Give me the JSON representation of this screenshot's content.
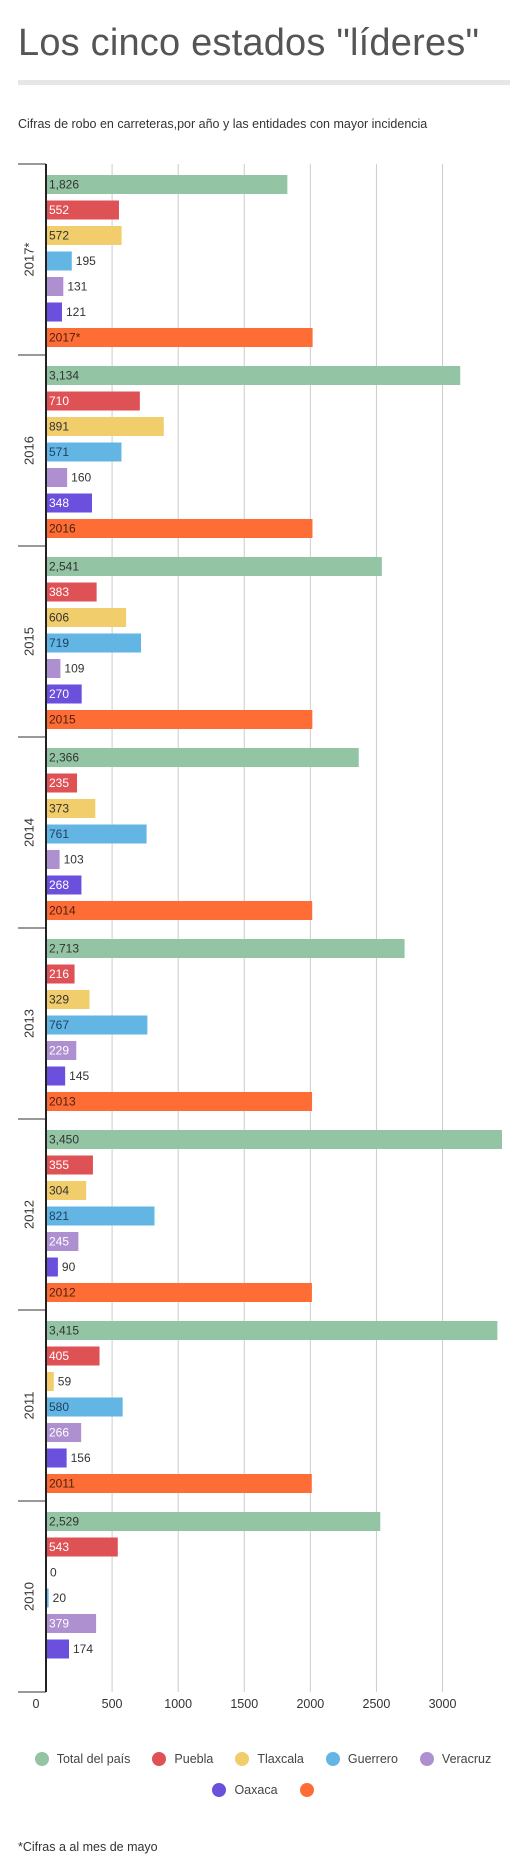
{
  "title": "Los cinco estados \"líderes\"",
  "subtitle": "Cifras de robo en carreteras,por año y las entidades con mayor incidencia",
  "footnote": "*Cifras a al mes de mayo",
  "chart_data": {
    "type": "bar",
    "orientation": "horizontal",
    "categories": [
      "2017*",
      "2016",
      "2015",
      "2014",
      "2013",
      "2012",
      "2011",
      "2010"
    ],
    "series": [
      {
        "name": "Total del país",
        "color": "#93c4a4",
        "values": [
          1826,
          3134,
          2541,
          2366,
          2713,
          3450,
          3415,
          2529
        ]
      },
      {
        "name": "Puebla",
        "color": "#de5155",
        "values": [
          552,
          710,
          383,
          235,
          216,
          355,
          405,
          543
        ]
      },
      {
        "name": "Tlaxcala",
        "color": "#f1cd6b",
        "values": [
          572,
          891,
          606,
          373,
          329,
          304,
          59,
          0
        ]
      },
      {
        "name": "Guerrero",
        "color": "#63b6e4",
        "values": [
          195,
          571,
          719,
          761,
          767,
          821,
          580,
          20
        ]
      },
      {
        "name": "Veracruz",
        "color": "#ae8fd0",
        "values": [
          131,
          160,
          109,
          103,
          229,
          245,
          266,
          379
        ]
      },
      {
        "name": "Oaxaca",
        "color": "#6b4fdd",
        "values": [
          121,
          348,
          270,
          268,
          145,
          90,
          156,
          174
        ]
      },
      {
        "name": "",
        "color": "#ff6d37",
        "values": [
          2017,
          2016,
          2015,
          2014,
          2013,
          2012,
          2011,
          null
        ],
        "labels": [
          "2017*",
          "2016",
          "2015",
          "2014",
          "2013",
          "2012",
          "2011",
          ""
        ]
      }
    ],
    "value_labels": [
      [
        "1,826",
        "552",
        "572",
        "195",
        "131",
        "121"
      ],
      [
        "3,134",
        "710",
        "891",
        "571",
        "160",
        "348"
      ],
      [
        "2,541",
        "383",
        "606",
        "719",
        "109",
        "270"
      ],
      [
        "2,366",
        "235",
        "373",
        "761",
        "103",
        "268"
      ],
      [
        "2,713",
        "216",
        "329",
        "767",
        "229",
        "145"
      ],
      [
        "3,450",
        "355",
        "304",
        "821",
        "245",
        "90"
      ],
      [
        "3,415",
        "405",
        "59",
        "580",
        "266",
        "156"
      ],
      [
        "2,529",
        "543",
        "0",
        "20",
        "379",
        "174"
      ]
    ],
    "xticks": [
      0,
      500,
      1000,
      1500,
      2000,
      2500,
      3000
    ],
    "xtick_labels": [
      "0",
      "500",
      "1000",
      "1500",
      "2000",
      "2500",
      "3000"
    ],
    "xlim": [
      0,
      3450
    ],
    "xlabel": "",
    "ylabel": "",
    "grid": true,
    "legend_position": "bottom"
  }
}
